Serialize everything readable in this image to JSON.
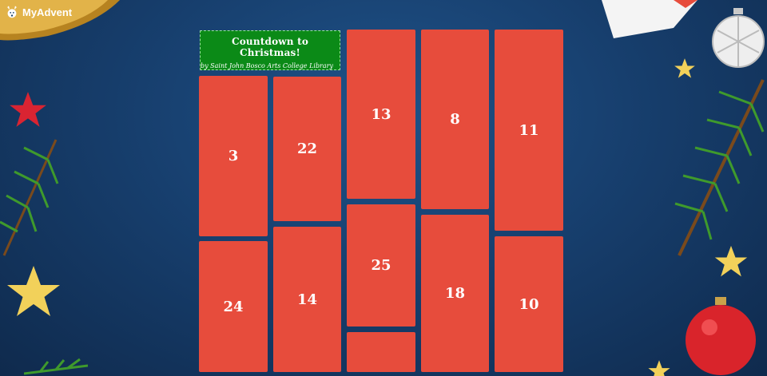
{
  "app": {
    "name": "MyAdvent"
  },
  "calendar": {
    "title": "Countdown to Christmas!",
    "subtitle": "by Saint John Bosco Arts College Library",
    "doors": [
      {
        "label": "3"
      },
      {
        "label": "24"
      },
      {
        "label": "22"
      },
      {
        "label": "14"
      },
      {
        "label": "13"
      },
      {
        "label": "25"
      },
      {
        "label": ""
      },
      {
        "label": "8"
      },
      {
        "label": "18"
      },
      {
        "label": "11"
      },
      {
        "label": "10"
      }
    ]
  },
  "colors": {
    "door": "#e74c3c",
    "title_card": "#0b8a17",
    "background": "#173f6e"
  },
  "icons": [
    "reindeer-icon",
    "bell-icon",
    "star-icon",
    "ornament-icon",
    "pine-branch-icon",
    "gift-icon"
  ]
}
